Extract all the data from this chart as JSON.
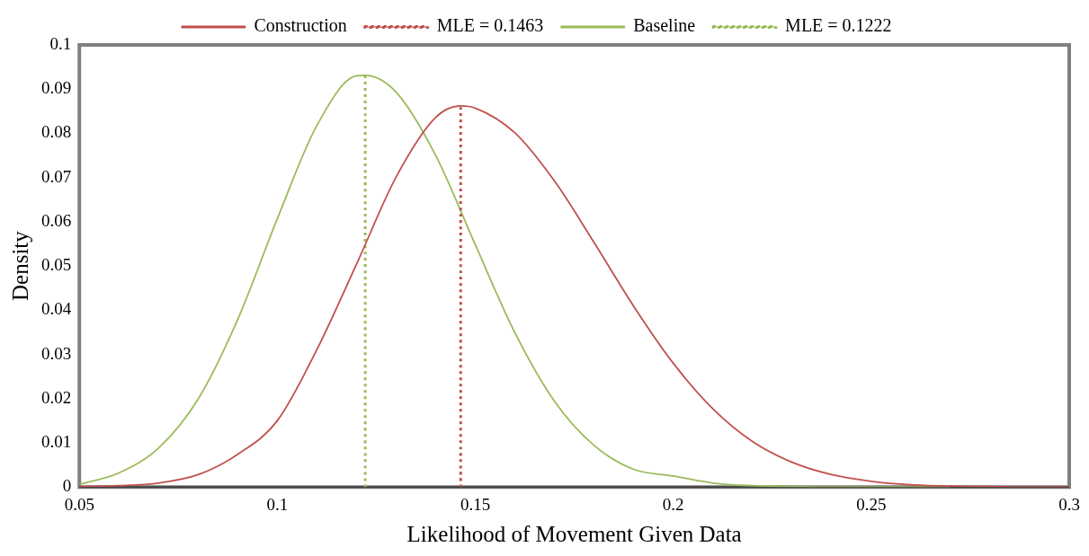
{
  "chart_data": {
    "type": "line",
    "xlabel": "Likelihood of Movement Given Data",
    "ylabel": "Density",
    "xlim": [
      0.05,
      0.3
    ],
    "xticks": [
      0.05,
      0.1,
      0.15,
      0.2,
      0.25,
      0.3
    ],
    "ylim": [
      0,
      0.1
    ],
    "yticks": [
      0,
      0.01,
      0.02,
      0.03,
      0.04,
      0.05,
      0.06,
      0.07,
      0.08,
      0.09,
      0.1
    ],
    "grid": false,
    "legend": "top",
    "marker": "none",
    "series": [
      {
        "name": "Construction",
        "color": "#c0504d",
        "line_style": "solid",
        "x": [
          0.05,
          0.06,
          0.07,
          0.08,
          0.09,
          0.1,
          0.11,
          0.12,
          0.13,
          0.14,
          0.1463,
          0.15,
          0.16,
          0.17,
          0.18,
          0.19,
          0.2,
          0.21,
          0.22,
          0.23,
          0.24,
          0.25,
          0.26,
          0.27,
          0.28,
          0.29,
          0.3
        ],
        "values": [
          0.0001,
          0.0003,
          0.0009,
          0.0028,
          0.0074,
          0.015,
          0.0311,
          0.0504,
          0.0701,
          0.0836,
          0.0862,
          0.0857,
          0.0801,
          0.0692,
          0.0553,
          0.0409,
          0.028,
          0.0177,
          0.0103,
          0.0056,
          0.0028,
          0.0013,
          0.0005,
          0.0002,
          0.0001,
          0,
          0
        ]
      },
      {
        "name": "MLE = 0.1463",
        "color": "#c0504d",
        "line_style": "dotted",
        "x": [
          0.1463,
          0.1463
        ],
        "values": [
          0,
          0.0862
        ]
      },
      {
        "name": "Baseline",
        "color": "#9bbb59",
        "line_style": "solid",
        "x": [
          0.05,
          0.06,
          0.07,
          0.08,
          0.09,
          0.1,
          0.11,
          0.12,
          0.1222,
          0.13,
          0.14,
          0.15,
          0.16,
          0.17,
          0.18,
          0.19,
          0.2,
          0.21,
          0.22,
          0.23,
          0.24,
          0.25,
          0.26,
          0.27
        ],
        "values": [
          0.0006,
          0.0032,
          0.0088,
          0.0199,
          0.0379,
          0.0607,
          0.0818,
          0.093,
          0.0931,
          0.0893,
          0.075,
          0.0548,
          0.0349,
          0.0194,
          0.0094,
          0.004,
          0.0025,
          0.0009,
          0.0003,
          0.0001,
          0,
          0,
          0,
          0
        ]
      },
      {
        "name": "MLE = 0.1222",
        "color": "#9bbb59",
        "line_style": "dotted",
        "x": [
          0.1222,
          0.1222
        ],
        "values": [
          0,
          0.0931
        ]
      }
    ]
  }
}
